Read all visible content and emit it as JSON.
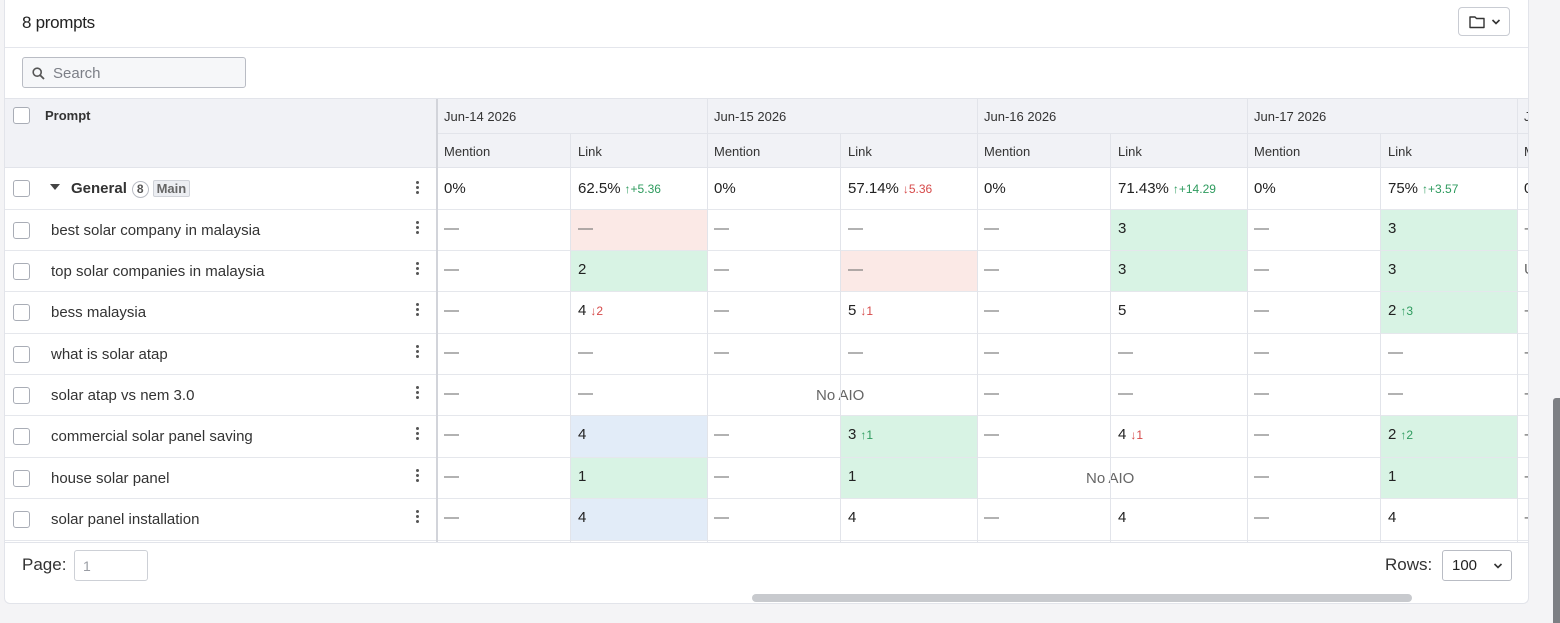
{
  "header": {
    "title": "8 prompts"
  },
  "search": {
    "placeholder": "Search"
  },
  "columns": {
    "prompt_label": "Prompt",
    "dates": [
      "Jun-14 2026",
      "Jun-15 2026",
      "Jun-16 2026",
      "Jun-17 2026",
      "Ju"
    ],
    "sub": {
      "mention": "Mention",
      "link": "Link",
      "partial": "M"
    }
  },
  "group": {
    "name": "General",
    "count": "8",
    "tag": "Main",
    "cells": [
      {
        "mention": "0%",
        "link": "62.5%",
        "delta": "↑+5.36",
        "dir": "up"
      },
      {
        "mention": "0%",
        "link": "57.14%",
        "delta": "↓5.36",
        "dir": "down"
      },
      {
        "mention": "0%",
        "link": "71.43%",
        "delta": "↑+14.29",
        "dir": "up"
      },
      {
        "mention": "0%",
        "link": "75%",
        "delta": "↑+3.57",
        "dir": "up"
      },
      {
        "mention": "0",
        "link": "",
        "delta": "",
        "dir": ""
      }
    ]
  },
  "rows": [
    {
      "label": "best solar company in malaysia",
      "cells": [
        {
          "m": "—",
          "l": "—",
          "bg": "red",
          "d": "",
          "dir": ""
        },
        {
          "m": "—",
          "l": "—",
          "bg": "",
          "d": "",
          "dir": ""
        },
        {
          "m": "—",
          "l": "3",
          "bg": "green",
          "d": "",
          "dir": ""
        },
        {
          "m": "—",
          "l": "3",
          "bg": "green",
          "d": "",
          "dir": ""
        },
        {
          "m": "-"
        }
      ]
    },
    {
      "label": "top solar companies in malaysia",
      "cells": [
        {
          "m": "—",
          "l": "2",
          "bg": "green",
          "d": "",
          "dir": ""
        },
        {
          "m": "—",
          "l": "—",
          "bg": "red",
          "d": "",
          "dir": ""
        },
        {
          "m": "—",
          "l": "3",
          "bg": "green",
          "d": "",
          "dir": ""
        },
        {
          "m": "—",
          "l": "3",
          "bg": "green",
          "d": "",
          "dir": ""
        },
        {
          "m": "U"
        }
      ]
    },
    {
      "label": "bess malaysia",
      "cells": [
        {
          "m": "—",
          "l": "4",
          "bg": "",
          "d": "↓2",
          "dir": "down"
        },
        {
          "m": "—",
          "l": "5",
          "bg": "",
          "d": "↓1",
          "dir": "down"
        },
        {
          "m": "—",
          "l": "5",
          "bg": "",
          "d": "",
          "dir": ""
        },
        {
          "m": "—",
          "l": "2",
          "bg": "green",
          "d": "↑3",
          "dir": "up"
        },
        {
          "m": "-"
        }
      ]
    },
    {
      "label": "what is solar atap",
      "cells": [
        {
          "m": "—",
          "l": "—",
          "bg": "",
          "d": "",
          "dir": ""
        },
        {
          "m": "—",
          "l": "—",
          "bg": "",
          "d": "",
          "dir": ""
        },
        {
          "m": "—",
          "l": "—",
          "bg": "",
          "d": "",
          "dir": ""
        },
        {
          "m": "—",
          "l": "—",
          "bg": "",
          "d": "",
          "dir": ""
        },
        {
          "m": "-"
        }
      ]
    },
    {
      "label": "solar atap vs nem 3.0",
      "cells": [
        {
          "m": "—",
          "l": "—",
          "bg": "",
          "d": "",
          "dir": ""
        },
        {
          "noaio": "No AIO"
        },
        {
          "m": "—",
          "l": "—",
          "bg": "",
          "d": "",
          "dir": ""
        },
        {
          "m": "—",
          "l": "—",
          "bg": "",
          "d": "",
          "dir": ""
        },
        {
          "m": "-"
        }
      ]
    },
    {
      "label": "commercial solar panel saving",
      "cells": [
        {
          "m": "—",
          "l": "4",
          "bg": "blue",
          "d": "",
          "dir": ""
        },
        {
          "m": "—",
          "l": "3",
          "bg": "green",
          "d": "↑1",
          "dir": "up"
        },
        {
          "m": "—",
          "l": "4",
          "bg": "",
          "d": "↓1",
          "dir": "down"
        },
        {
          "m": "—",
          "l": "2",
          "bg": "green",
          "d": "↑2",
          "dir": "up"
        },
        {
          "m": "-"
        }
      ]
    },
    {
      "label": "house solar panel",
      "cells": [
        {
          "m": "—",
          "l": "1",
          "bg": "green",
          "d": "",
          "dir": ""
        },
        {
          "m": "—",
          "l": "1",
          "bg": "green",
          "d": "",
          "dir": ""
        },
        {
          "noaio": "No AIO"
        },
        {
          "m": "—",
          "l": "1",
          "bg": "green",
          "d": "",
          "dir": ""
        },
        {
          "m": "-"
        }
      ]
    },
    {
      "label": "solar panel installation",
      "cells": [
        {
          "m": "—",
          "l": "4",
          "bg": "blue",
          "d": "",
          "dir": ""
        },
        {
          "m": "—",
          "l": "4",
          "bg": "",
          "d": "",
          "dir": ""
        },
        {
          "m": "—",
          "l": "4",
          "bg": "",
          "d": "",
          "dir": ""
        },
        {
          "m": "—",
          "l": "4",
          "bg": "",
          "d": "",
          "dir": ""
        },
        {
          "m": "-"
        }
      ]
    }
  ],
  "footer": {
    "page_label": "Page:",
    "page_value": "1",
    "rows_label": "Rows:",
    "rows_value": "100"
  },
  "colors": {
    "red": "#fbe9e6",
    "green": "#d8f3e4",
    "blue": "#e2ecf8",
    "up": "#2e9b5e",
    "down": "#d64a4a"
  },
  "icons": {
    "folder": "folder-icon",
    "chevron": "chevron-down-icon",
    "search": "search-icon",
    "caret": "caret-down-icon",
    "more": "more-vertical-icon"
  }
}
